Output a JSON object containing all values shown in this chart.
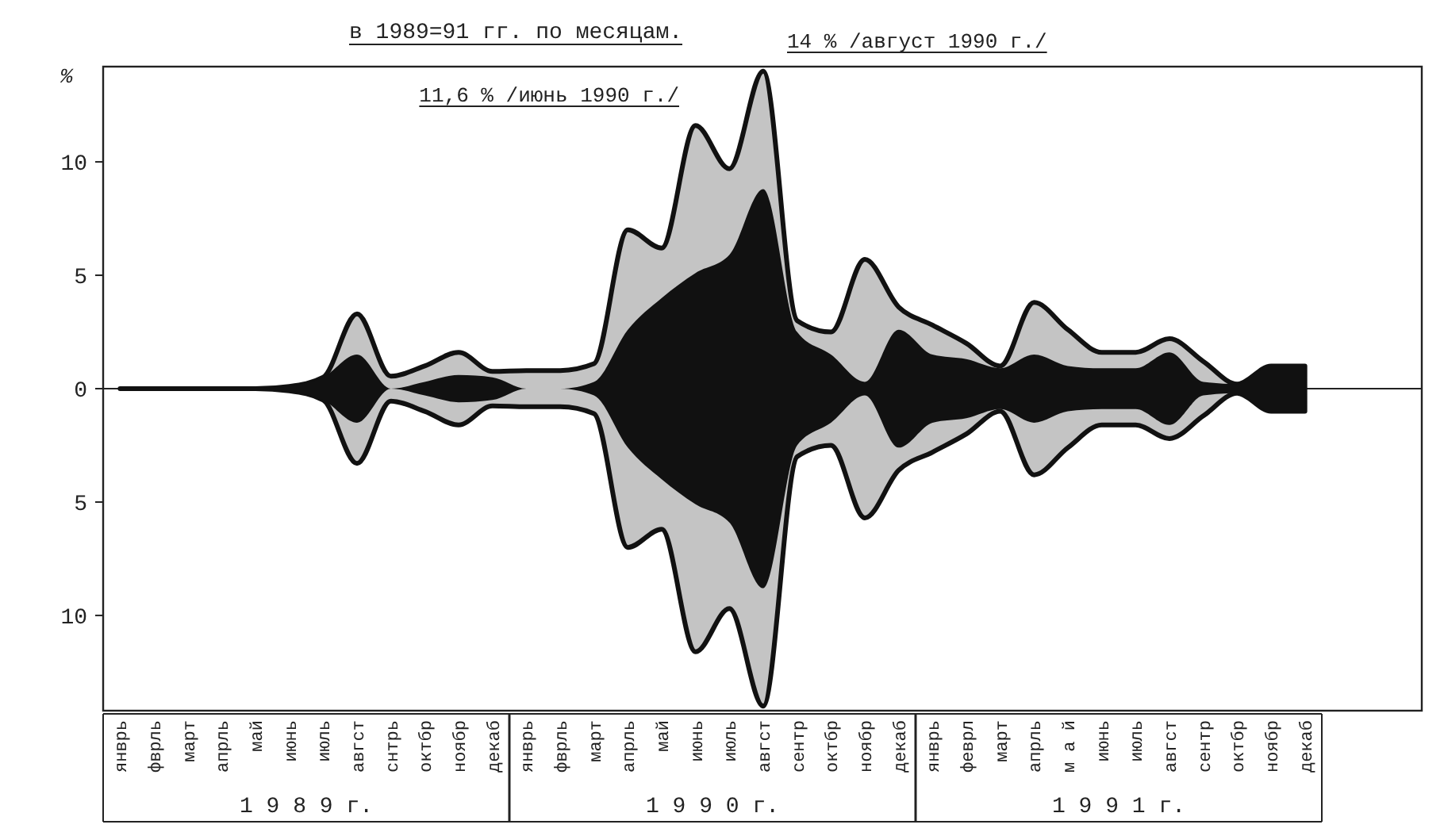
{
  "chart_data": {
    "type": "line",
    "title": "в 1989=91 гг. по месяцам.",
    "ylabel": "%",
    "categories": [
      "янврь",
      "фврль",
      "март",
      "апрль",
      "май",
      "июнь",
      "июль",
      "авгст",
      "снтрь",
      "октбр",
      "ноябр",
      "декаб",
      "янврь",
      "фврль",
      "март",
      "апрль",
      "май",
      "июнь",
      "июль",
      "авгст",
      "сентр",
      "октбр",
      "ноябр",
      "декаб",
      "янврь",
      "феврл",
      "март",
      "апрль",
      "м а й",
      "июнь",
      "июль",
      "авгст",
      "сентр",
      "октбр",
      "ноябр",
      "декаб"
    ],
    "series": [
      {
        "color": "#c4c4c4",
        "values": [
          null,
          null,
          null,
          null,
          null,
          null,
          null,
          null,
          null,
          null,
          null,
          null,
          null,
          null,
          null,
          null,
          null,
          null,
          null,
          null,
          null,
          null,
          null,
          null,
          null,
          null,
          null,
          null,
          null,
          null,
          null,
          null,
          null,
          null,
          null,
          null
        ],
        "upper": [
          0,
          0,
          0,
          0,
          0,
          0.1,
          0.5,
          3.3,
          0.55,
          1.0,
          1.6,
          0.76,
          0.8,
          0.8,
          1.1,
          7.0,
          6.2,
          11.6,
          9.7,
          14,
          3.0,
          2.5,
          5.7,
          3.6,
          2.8,
          2.0,
          1.0,
          3.8,
          2.6,
          1.6,
          1.6,
          2.2,
          1.2,
          0.2,
          1.0,
          1.0
        ],
        "lower": [
          0,
          0,
          0,
          0,
          0,
          -0.1,
          -0.5,
          -3.3,
          -0.55,
          -1.0,
          -1.6,
          -0.76,
          -0.8,
          -0.8,
          -1.1,
          -7.0,
          -6.2,
          -11.6,
          -9.7,
          -14,
          -3.0,
          -2.5,
          -5.7,
          -3.6,
          -2.8,
          -2.0,
          -1.0,
          -3.8,
          -2.6,
          -1.6,
          -1.6,
          -2.2,
          -1.2,
          -0.2,
          -1.0,
          -1.0
        ]
      },
      {
        "color": "#111111",
        "values": [
          null,
          null,
          null,
          null,
          null,
          null,
          null,
          null,
          null,
          null,
          null,
          null,
          null,
          null,
          null,
          null,
          null,
          null,
          null,
          null,
          null,
          null,
          null,
          null,
          null,
          null,
          null,
          null,
          null,
          null,
          null,
          null,
          null,
          null,
          null,
          null
        ],
        "upper": [
          0,
          0,
          0,
          0,
          0,
          0.1,
          0.5,
          1.5,
          0,
          0.3,
          0.6,
          0.5,
          0,
          0,
          0.3,
          2.6,
          4.0,
          5.1,
          5.9,
          8.8,
          2.5,
          1.5,
          0.3,
          2.6,
          1.5,
          1.3,
          0.9,
          1.5,
          1.0,
          0.9,
          0.9,
          1.6,
          0.3,
          0.2,
          1.0,
          1.0
        ],
        "lower": [
          0,
          0,
          0,
          0,
          0,
          -0.1,
          -0.5,
          -1.5,
          0,
          -0.3,
          -0.6,
          -0.5,
          0,
          0,
          -0.3,
          -2.6,
          -4.0,
          -5.1,
          -5.9,
          -8.8,
          -2.5,
          -1.5,
          -0.3,
          -2.6,
          -1.5,
          -1.3,
          -0.9,
          -1.5,
          -1.0,
          -0.9,
          -0.9,
          -1.6,
          -0.3,
          -0.2,
          -1.0,
          -1.0
        ]
      }
    ],
    "ylim": [
      -14.2,
      14.2
    ],
    "yticks": [
      {
        "value": -10,
        "label": "10"
      },
      {
        "value": -5,
        "label": "5"
      },
      0,
      5,
      10
    ],
    "annotations": [
      "11,6 % /июнь 1990 г./",
      "14 % /август 1990 г./",
      "1 9 8 9 г.",
      "1 9 9 0 г.",
      "1 9 9 1 г."
    ]
  }
}
